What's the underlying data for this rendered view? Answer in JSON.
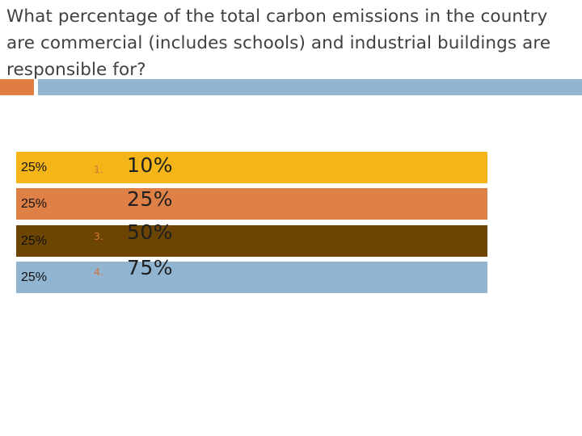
{
  "question": "What percentage of the total carbon emissions in the country are commercial (includes schools) and industrial buildings are responsible for?",
  "colors": {
    "accent_orange": "#e07d43",
    "accent_blue": "#91b4d1",
    "bar_1": "#f3b518",
    "bar_2": "#df8047",
    "bar_3": "#6d4503",
    "bar_4": "#91b4d1",
    "number_color": "#d57236"
  },
  "response_bars": [
    {
      "percent": "25%"
    },
    {
      "percent": "25%"
    },
    {
      "percent": "25%"
    },
    {
      "percent": "25%"
    }
  ],
  "options": [
    {
      "number": "1.",
      "value": "10%"
    },
    {
      "number": "",
      "value": "25%"
    },
    {
      "number": "3.",
      "value": "50%"
    },
    {
      "number": "4.",
      "value": "75%"
    }
  ]
}
